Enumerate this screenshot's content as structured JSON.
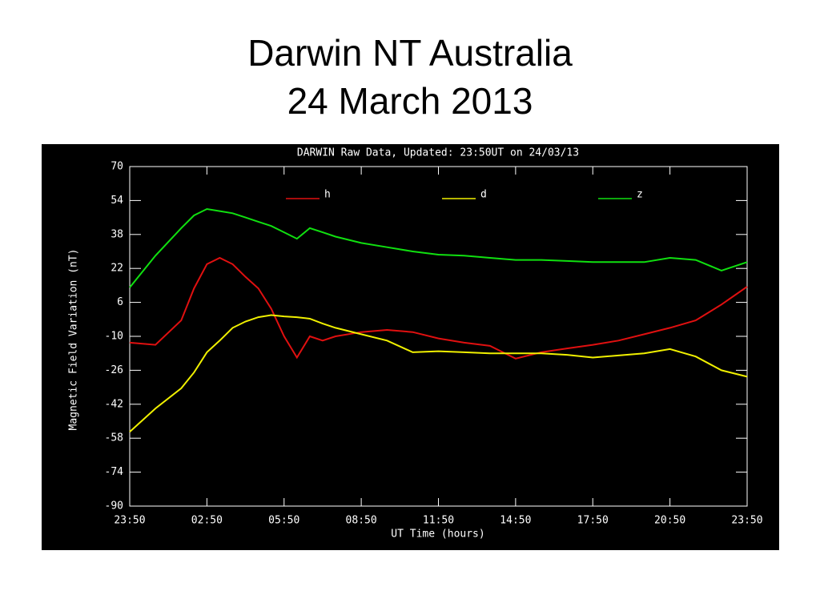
{
  "slide_title": [
    "Darwin NT Australia",
    "24 March 2013"
  ],
  "chart_data": {
    "type": "line",
    "title": "DARWIN Raw Data, Updated: 23:50UT on 24/03/13",
    "xlabel": "UT Time (hours)",
    "ylabel": "Magnetic Field Variation (nT)",
    "x": [
      0,
      1,
      2,
      2.5,
      3,
      3.5,
      4,
      4.5,
      5,
      5.5,
      6,
      6.5,
      7,
      7.5,
      8,
      9,
      10,
      11,
      12,
      13,
      14,
      15,
      16,
      17,
      18,
      19,
      20,
      21,
      22,
      23,
      24
    ],
    "xlim": [
      0,
      24
    ],
    "xticks": [
      {
        "value": 0,
        "label": "23:50"
      },
      {
        "value": 3,
        "label": "02:50"
      },
      {
        "value": 6,
        "label": "05:50"
      },
      {
        "value": 9,
        "label": "08:50"
      },
      {
        "value": 12,
        "label": "11:50"
      },
      {
        "value": 15,
        "label": "14:50"
      },
      {
        "value": 18,
        "label": "17:50"
      },
      {
        "value": 21,
        "label": "20:50"
      },
      {
        "value": 24,
        "label": "23:50"
      }
    ],
    "ylim": [
      -90,
      70
    ],
    "yticks": [
      70,
      54,
      38,
      22,
      6,
      -10,
      -26,
      -42,
      -58,
      -74,
      -90
    ],
    "series": [
      {
        "name": "h",
        "color": "#e01010",
        "values": [
          -13,
          -14,
          -2.5,
          12.6,
          24,
          27,
          24,
          18,
          12.6,
          3,
          -10,
          -20,
          -10,
          -12,
          -10,
          -8,
          -7,
          -8,
          -11,
          -13,
          -14.5,
          -20.5,
          -17.5,
          -15.7,
          -14,
          -12,
          -9,
          -6,
          -2.5,
          5,
          13.4
        ]
      },
      {
        "name": "d",
        "color": "#f0f000",
        "values": [
          -55,
          -44,
          -34.5,
          -27,
          -17.5,
          -12,
          -6,
          -3,
          -1,
          0,
          -0.6,
          -1,
          -1.7,
          -4,
          -6,
          -9,
          -12,
          -17.5,
          -17,
          -17.5,
          -18,
          -18,
          -18,
          -18.7,
          -20,
          -19,
          -18,
          -16,
          -19.5,
          -26,
          -29
        ]
      },
      {
        "name": "z",
        "color": "#10e010",
        "values": [
          13,
          28,
          41,
          47,
          50,
          49,
          48,
          46,
          44,
          42,
          39,
          36,
          41,
          39,
          37,
          34,
          32,
          30,
          28.5,
          28,
          27,
          26,
          26,
          25.5,
          25,
          25,
          25,
          27,
          26,
          21,
          25
        ]
      }
    ]
  }
}
